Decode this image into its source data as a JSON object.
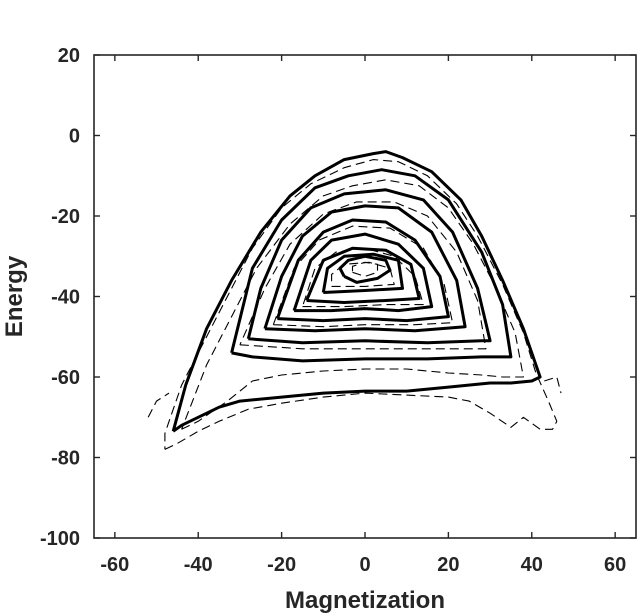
{
  "chart_data": {
    "type": "contour",
    "title": "",
    "xlabel": "Magnetization",
    "ylabel": "Energy",
    "xlim": [
      -65,
      65
    ],
    "ylim": [
      -100,
      20
    ],
    "xticks": [
      -60,
      -40,
      -20,
      0,
      20,
      40,
      60
    ],
    "yticks": [
      20,
      0,
      -20,
      -40,
      -60,
      -80,
      -100
    ],
    "grid": false,
    "legend": "none",
    "series": [
      {
        "style": "solid",
        "contours": [
          [
            [
              -46,
              -73.5
            ],
            [
              -44,
              -72
            ],
            [
              -40,
              -70
            ],
            [
              -35,
              -67.5
            ],
            [
              -30,
              -66
            ],
            [
              -20,
              -65
            ],
            [
              -10,
              -64
            ],
            [
              0,
              -63.5
            ],
            [
              10,
              -63.5
            ],
            [
              20,
              -62.5
            ],
            [
              30,
              -61.5
            ],
            [
              35,
              -61.5
            ],
            [
              40,
              -61
            ],
            [
              42,
              -60
            ],
            [
              38,
              -48
            ],
            [
              33,
              -36
            ],
            [
              28,
              -25
            ],
            [
              23,
              -16
            ],
            [
              16,
              -9
            ],
            [
              9,
              -5.5
            ],
            [
              5,
              -4
            ],
            [
              2,
              -4.5
            ],
            [
              -5,
              -6
            ],
            [
              -12,
              -10
            ],
            [
              -18,
              -15
            ],
            [
              -25,
              -24
            ],
            [
              -32,
              -36
            ],
            [
              -38,
              -48
            ],
            [
              -43,
              -62
            ],
            [
              -46,
              -73.5
            ]
          ],
          [
            [
              -32,
              -54
            ],
            [
              -27,
              -55
            ],
            [
              -15,
              -56
            ],
            [
              0,
              -55.5
            ],
            [
              15,
              -55.5
            ],
            [
              28,
              -55
            ],
            [
              35,
              -55
            ],
            [
              33,
              -42
            ],
            [
              28,
              -29
            ],
            [
              20,
              -16
            ],
            [
              12,
              -10
            ],
            [
              4,
              -8.5
            ],
            [
              -4,
              -10
            ],
            [
              -12,
              -13
            ],
            [
              -20,
              -21
            ],
            [
              -27,
              -33
            ],
            [
              -32,
              -54
            ]
          ],
          [
            [
              -28,
              -50.5
            ],
            [
              -15,
              -51.5
            ],
            [
              0,
              -51
            ],
            [
              15,
              -51.5
            ],
            [
              28,
              -51
            ],
            [
              30,
              -51
            ],
            [
              27,
              -38
            ],
            [
              21,
              -24
            ],
            [
              14,
              -16
            ],
            [
              5,
              -13.5
            ],
            [
              -5,
              -14.5
            ],
            [
              -13,
              -18
            ],
            [
              -20,
              -26
            ],
            [
              -25,
              -38
            ],
            [
              -28,
              -50.5
            ]
          ],
          [
            [
              -24,
              -48
            ],
            [
              -12,
              -48.5
            ],
            [
              0,
              -48
            ],
            [
              12,
              -48.5
            ],
            [
              24,
              -47.5
            ],
            [
              22,
              -36
            ],
            [
              16,
              -24
            ],
            [
              8,
              -18
            ],
            [
              0,
              -17.5
            ],
            [
              -8,
              -19
            ],
            [
              -15,
              -25
            ],
            [
              -20,
              -35
            ],
            [
              -24,
              -48
            ]
          ],
          [
            [
              -21,
              -45.5
            ],
            [
              -10,
              -46
            ],
            [
              0,
              -45.5
            ],
            [
              10,
              -46
            ],
            [
              20,
              -45
            ],
            [
              18,
              -35
            ],
            [
              12,
              -26
            ],
            [
              5,
              -21.5
            ],
            [
              -3,
              -21
            ],
            [
              -10,
              -24
            ],
            [
              -16,
              -31
            ],
            [
              -21,
              -45.5
            ]
          ],
          [
            [
              -17,
              -43.5
            ],
            [
              -8,
              -43.5
            ],
            [
              0,
              -43
            ],
            [
              8,
              -43.5
            ],
            [
              16,
              -42.5
            ],
            [
              14,
              -33
            ],
            [
              8,
              -27
            ],
            [
              0,
              -24.5
            ],
            [
              -8,
              -26
            ],
            [
              -13,
              -31
            ],
            [
              -17,
              -43.5
            ]
          ],
          [
            [
              -14,
              -41
            ],
            [
              -5,
              -41.5
            ],
            [
              5,
              -41
            ],
            [
              13,
              -40.5
            ],
            [
              11,
              -32
            ],
            [
              5,
              -28.5
            ],
            [
              -3,
              -28
            ],
            [
              -10,
              -31
            ],
            [
              -14,
              -41
            ]
          ],
          [
            [
              -10,
              -39
            ],
            [
              0,
              -38.5
            ],
            [
              9,
              -38
            ],
            [
              8,
              -31
            ],
            [
              2,
              -29.5
            ],
            [
              -5,
              -30
            ],
            [
              -9,
              -33
            ],
            [
              -10,
              -39
            ]
          ],
          [
            [
              -5,
              -35
            ],
            [
              -2,
              -36.5
            ],
            [
              3,
              -35.5
            ],
            [
              6,
              -33.5
            ],
            [
              5,
              -31
            ],
            [
              0,
              -30
            ],
            [
              -4,
              -31
            ],
            [
              -6,
              -33
            ],
            [
              -5,
              -35
            ]
          ]
        ]
      },
      {
        "style": "dashed",
        "contours": [
          [
            [
              -48,
              -78
            ],
            [
              -45,
              -76.5
            ],
            [
              -40,
              -73.5
            ],
            [
              -35,
              -71
            ],
            [
              -28,
              -68
            ],
            [
              -20,
              -66.5
            ],
            [
              -10,
              -65
            ],
            [
              0,
              -64
            ],
            [
              10,
              -64.5
            ],
            [
              20,
              -65
            ],
            [
              25,
              -66
            ],
            [
              30,
              -69
            ],
            [
              35,
              -72.5
            ],
            [
              38,
              -70
            ],
            [
              42,
              -73
            ],
            [
              45,
              -73
            ],
            [
              46,
              -71
            ],
            [
              44,
              -66
            ],
            [
              41,
              -59
            ],
            [
              38,
              -49
            ],
            [
              33,
              -37
            ],
            [
              27,
              -25
            ],
            [
              22,
              -17
            ],
            [
              15,
              -10
            ],
            [
              8,
              -6.5
            ],
            [
              2,
              -6
            ],
            [
              -5,
              -8
            ],
            [
              -13,
              -12
            ],
            [
              -20,
              -18
            ],
            [
              -27,
              -28
            ],
            [
              -33,
              -40
            ],
            [
              -39,
              -52
            ],
            [
              -44,
              -62
            ],
            [
              -48,
              -74
            ],
            [
              -48,
              -78
            ]
          ],
          [
            [
              -44,
              -73
            ],
            [
              -40,
              -71
            ],
            [
              -33,
              -66
            ],
            [
              -27,
              -61
            ],
            [
              -20,
              -59.5
            ],
            [
              -10,
              -58.5
            ],
            [
              0,
              -58
            ],
            [
              10,
              -58
            ],
            [
              20,
              -59
            ],
            [
              28,
              -59.5
            ],
            [
              33,
              -60
            ],
            [
              38,
              -60
            ],
            [
              36,
              -49
            ],
            [
              31,
              -37
            ],
            [
              26,
              -27
            ],
            [
              20,
              -18
            ],
            [
              13,
              -12.5
            ],
            [
              5,
              -11
            ],
            [
              -3,
              -12.5
            ],
            [
              -10,
              -15
            ],
            [
              -18,
              -22
            ],
            [
              -26,
              -33
            ],
            [
              -32,
              -45
            ],
            [
              -38,
              -57
            ],
            [
              -44,
              -73
            ]
          ],
          [
            [
              -30,
              -52
            ],
            [
              -15,
              -53
            ],
            [
              0,
              -53
            ],
            [
              15,
              -53
            ],
            [
              29,
              -53
            ],
            [
              27,
              -41
            ],
            [
              22,
              -29
            ],
            [
              15,
              -20
            ],
            [
              7,
              -16.5
            ],
            [
              -2,
              -16.5
            ],
            [
              -10,
              -19.5
            ],
            [
              -18,
              -27
            ],
            [
              -24,
              -38
            ],
            [
              -30,
              -52
            ]
          ],
          [
            [
              -22,
              -47
            ],
            [
              -10,
              -47.5
            ],
            [
              0,
              -47
            ],
            [
              12,
              -47
            ],
            [
              21,
              -46.5
            ],
            [
              19,
              -37
            ],
            [
              14,
              -28
            ],
            [
              6,
              -23
            ],
            [
              -3,
              -22.5
            ],
            [
              -11,
              -26
            ],
            [
              -17,
              -33
            ],
            [
              -22,
              -47
            ]
          ],
          [
            [
              -15,
              -42.5
            ],
            [
              -5,
              -42.5
            ],
            [
              5,
              -42
            ],
            [
              14,
              -42
            ],
            [
              12,
              -35
            ],
            [
              7,
              -30
            ],
            [
              0,
              -28
            ],
            [
              -7,
              -29
            ],
            [
              -12,
              -33
            ],
            [
              -15,
              -42.5
            ]
          ],
          [
            [
              -8,
              -37.5
            ],
            [
              0,
              -37.5
            ],
            [
              7,
              -37
            ],
            [
              6,
              -33
            ],
            [
              1,
              -31.5
            ],
            [
              -5,
              -32
            ],
            [
              -8,
              -34.5
            ],
            [
              -8,
              -37.5
            ]
          ],
          [
            [
              -3,
              -34
            ],
            [
              0,
              -35
            ],
            [
              3,
              -34
            ],
            [
              3,
              -32
            ],
            [
              0,
              -31.5
            ],
            [
              -3,
              -32.5
            ],
            [
              -3,
              -34
            ]
          ],
          [
            [
              -52,
              -70
            ],
            [
              -50,
              -66
            ],
            [
              -47,
              -64
            ]
          ],
          [
            [
              43,
              -61
            ],
            [
              46,
              -60
            ],
            [
              47,
              -64
            ]
          ]
        ]
      }
    ]
  }
}
